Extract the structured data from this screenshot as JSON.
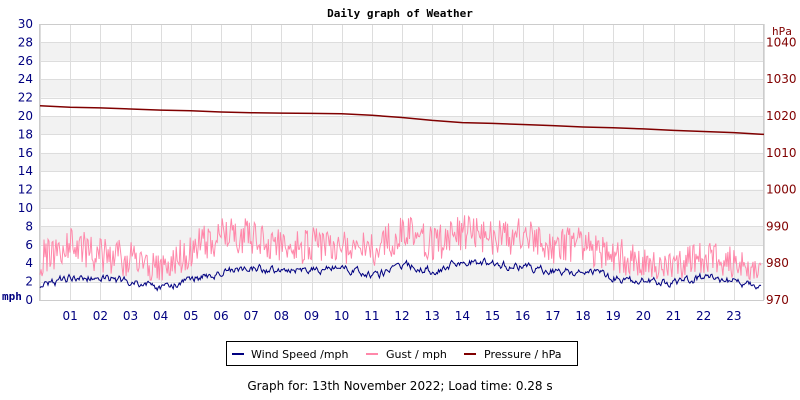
{
  "chart_data": {
    "type": "line",
    "title": "Daily graph of Weather",
    "y_left_unit": "mph",
    "y_right_unit": "hPa",
    "y_left_range": [
      0,
      30
    ],
    "y_left_ticks": [
      0,
      2,
      4,
      6,
      8,
      10,
      12,
      14,
      16,
      18,
      20,
      22,
      24,
      26,
      28,
      30
    ],
    "y_right_range": [
      970,
      1045
    ],
    "y_right_ticks": [
      970,
      980,
      990,
      1000,
      1010,
      1020,
      1030,
      1040
    ],
    "x_hour_labels": [
      "01",
      "02",
      "03",
      "04",
      "05",
      "06",
      "07",
      "08",
      "09",
      "10",
      "11",
      "12",
      "13",
      "14",
      "15",
      "16",
      "17",
      "18",
      "19",
      "20",
      "21",
      "22",
      "23"
    ],
    "x_range_hours": [
      0,
      24
    ],
    "grid": true,
    "legend_position": "bottom",
    "series": [
      {
        "name": "Wind Speed /mph",
        "color": "#000080",
        "axis": "left",
        "x_hours": [
          0,
          1,
          2,
          3,
          4,
          5,
          6,
          7,
          8,
          9,
          10,
          11,
          12,
          13,
          14,
          15,
          16,
          17,
          18,
          19,
          20,
          21,
          22,
          23,
          23.9
        ],
        "values": [
          1.5,
          2.5,
          2.3,
          2.0,
          1.2,
          2.2,
          3.0,
          3.5,
          3.0,
          3.2,
          3.5,
          2.5,
          3.8,
          3.2,
          4.2,
          4.0,
          3.5,
          3.0,
          3.2,
          2.4,
          2.0,
          1.8,
          2.5,
          2.0,
          1.2
        ]
      },
      {
        "name": "Gust / mph",
        "color": "#ff88aa",
        "axis": "left",
        "x_hours": [
          0,
          1,
          2,
          3,
          4,
          5,
          6,
          7,
          8,
          9,
          10,
          11,
          12,
          13,
          14,
          15,
          16,
          17,
          18,
          19,
          20,
          21,
          22,
          23,
          23.9
        ],
        "values": [
          4.0,
          5.5,
          4.5,
          4.0,
          3.0,
          5.0,
          6.5,
          6.5,
          5.5,
          5.5,
          5.5,
          5.0,
          7.0,
          5.5,
          7.0,
          6.5,
          6.5,
          5.5,
          5.5,
          4.5,
          3.5,
          3.5,
          4.0,
          4.0,
          2.5
        ]
      },
      {
        "name": "Pressure / hPa",
        "color": "#800000",
        "axis": "right",
        "x_hours": [
          0,
          1,
          2,
          3,
          4,
          5,
          6,
          7,
          8,
          9,
          10,
          11,
          12,
          13,
          14,
          15,
          16,
          17,
          18,
          19,
          20,
          21,
          22,
          23,
          24
        ],
        "values": [
          1022.8,
          1022.4,
          1022.2,
          1021.9,
          1021.6,
          1021.4,
          1021.1,
          1020.9,
          1020.8,
          1020.7,
          1020.6,
          1020.2,
          1019.6,
          1018.8,
          1018.2,
          1018.0,
          1017.7,
          1017.4,
          1017.0,
          1016.8,
          1016.5,
          1016.1,
          1015.8,
          1015.5,
          1015.0
        ]
      }
    ]
  },
  "footer": {
    "label": "Graph for:",
    "date": "13th November 2022;",
    "load_label": "Load time:",
    "load_value": "0.28 s"
  }
}
